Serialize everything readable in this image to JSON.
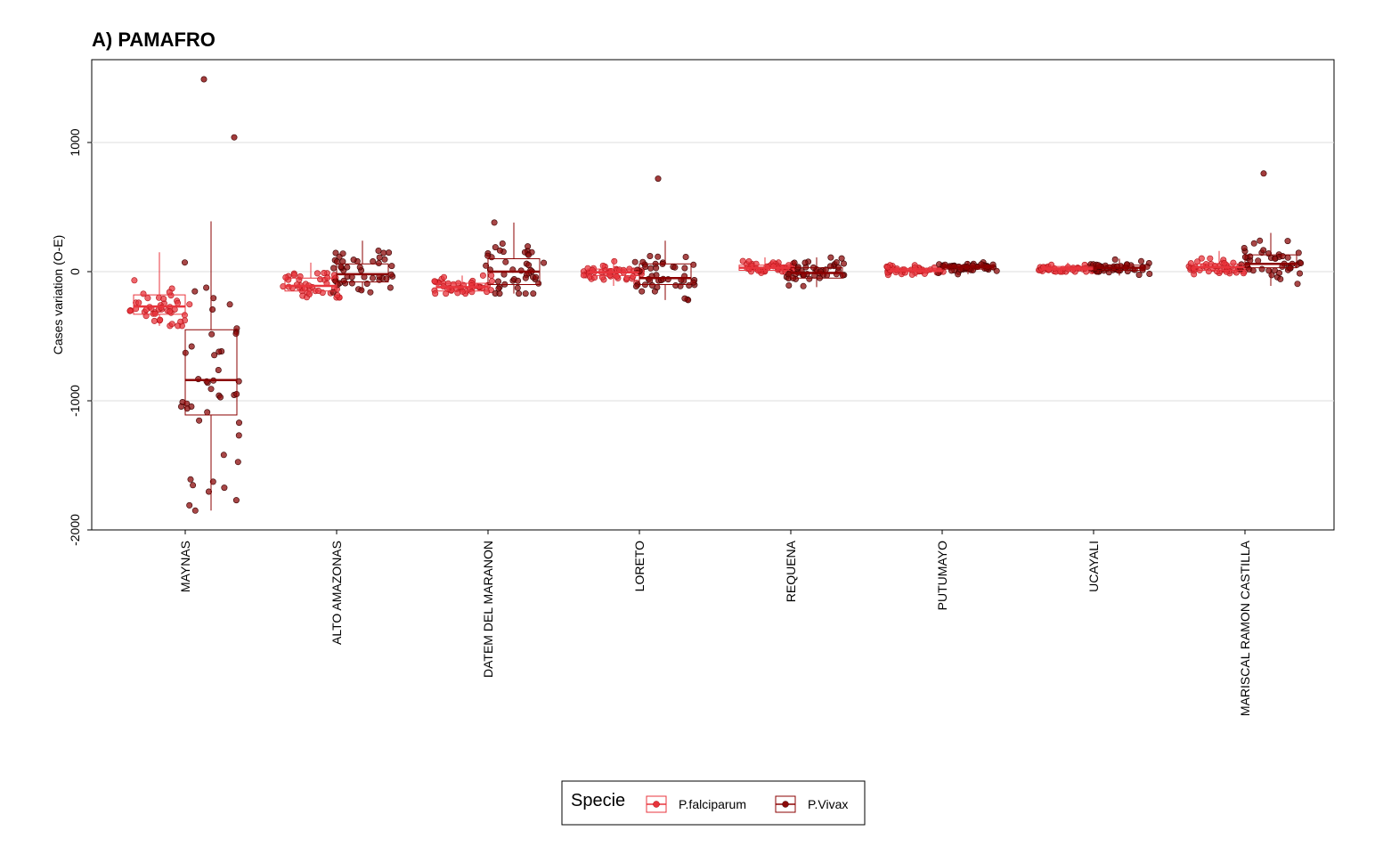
{
  "chart_data": {
    "type": "boxplot-jitter",
    "title": "A) PAMAFRO",
    "xlabel": "",
    "ylabel": "Cases variation (O-E)",
    "ylim": [
      -2000,
      1500
    ],
    "yticks": [
      -2000,
      -1000,
      0,
      1000
    ],
    "grid": true,
    "legend_position": "bottom",
    "legend_title": "Specie",
    "categories": [
      "MAYNAS",
      "ALTO AMAZONAS",
      "DATEM DEL MARANON",
      "LORETO",
      "REQUENA",
      "PUTUMAYO",
      "UCAYALI",
      "MARISCAL RAMON CASTILLA"
    ],
    "series": [
      {
        "name": "P.falciparum",
        "color": "#e8343c",
        "box_stroke": "#e8343c",
        "boxes": [
          {
            "q1": -330,
            "median": -270,
            "q3": -180,
            "whisker_low": -420,
            "whisker_high": 150
          },
          {
            "q1": -150,
            "median": -110,
            "q3": -50,
            "whisker_low": -200,
            "whisker_high": 70
          },
          {
            "q1": -150,
            "median": -120,
            "q3": -90,
            "whisker_low": -170,
            "whisker_high": -30
          },
          {
            "q1": -30,
            "median": -5,
            "q3": 20,
            "whisker_low": -110,
            "whisker_high": 100
          },
          {
            "q1": 10,
            "median": 30,
            "q3": 50,
            "whisker_low": -10,
            "whisker_high": 110
          },
          {
            "q1": 0,
            "median": 10,
            "q3": 25,
            "whisker_low": -40,
            "whisker_high": 50
          },
          {
            "q1": 15,
            "median": 25,
            "q3": 40,
            "whisker_low": 0,
            "whisker_high": 70
          },
          {
            "q1": 10,
            "median": 35,
            "q3": 60,
            "whisker_low": -20,
            "whisker_high": 160
          }
        ]
      },
      {
        "name": "P.Vivax",
        "color": "#8b0a0a",
        "box_stroke": "#8b0000",
        "boxes": [
          {
            "q1": -1110,
            "median": -840,
            "q3": -450,
            "whisker_low": -1850,
            "whisker_high": 390
          },
          {
            "q1": -80,
            "median": -20,
            "q3": 60,
            "whisker_low": -160,
            "whisker_high": 240
          },
          {
            "q1": -100,
            "median": 0,
            "q3": 100,
            "whisker_low": -170,
            "whisker_high": 380
          },
          {
            "q1": -100,
            "median": -50,
            "q3": 60,
            "whisker_low": -220,
            "whisker_high": 240
          },
          {
            "q1": -50,
            "median": -10,
            "q3": 30,
            "whisker_low": -120,
            "whisker_high": 110
          },
          {
            "q1": 20,
            "median": 35,
            "q3": 50,
            "whisker_low": -20,
            "whisker_high": 80
          },
          {
            "q1": 10,
            "median": 30,
            "q3": 50,
            "whisker_low": -30,
            "whisker_high": 100
          },
          {
            "q1": 30,
            "median": 60,
            "q3": 130,
            "whisker_low": -110,
            "whisker_high": 300
          }
        ]
      }
    ],
    "outliers": [
      {
        "category": "MAYNAS",
        "series": "P.Vivax",
        "values": [
          1490,
          1040
        ]
      },
      {
        "category": "LORETO",
        "series": "P.Vivax",
        "values": [
          720
        ]
      },
      {
        "category": "MARISCAL RAMON CASTILLA",
        "series": "P.Vivax",
        "values": [
          760
        ]
      }
    ]
  }
}
